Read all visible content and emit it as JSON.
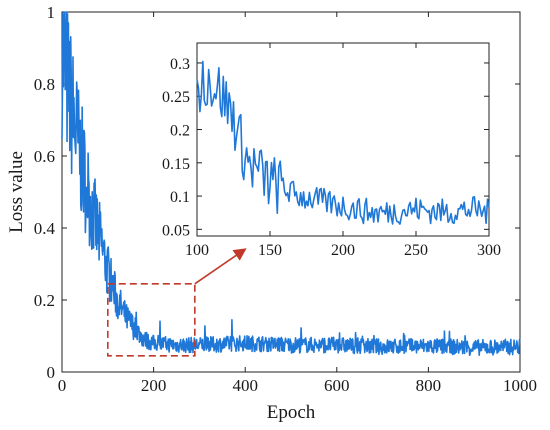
{
  "chart_data": [
    {
      "id": "main",
      "type": "line",
      "xlabel": "Epoch",
      "ylabel": "Loss value",
      "xlim": [
        0,
        1000
      ],
      "ylim": [
        0,
        1
      ],
      "xticks": [
        0,
        200,
        400,
        600,
        800,
        1000
      ],
      "yticks": [
        0,
        0.2,
        0.4,
        0.6,
        0.8,
        1
      ],
      "xtick_labels": [
        "0",
        "200",
        "400",
        "600",
        "800",
        "1000"
      ],
      "ytick_labels": [
        "0",
        "0.2",
        "0.4",
        "0.6",
        "0.8",
        "1"
      ],
      "grid": false,
      "line_color": "#1f78d8",
      "series": [
        {
          "x": [
            0,
            20,
            40,
            60,
            80,
            100,
            120,
            140,
            160,
            180,
            200,
            250,
            300,
            400,
            500,
            600,
            700,
            800,
            900,
            1000
          ],
          "values": [
            0.9,
            0.74,
            0.6,
            0.48,
            0.38,
            0.28,
            0.2,
            0.15,
            0.12,
            0.09,
            0.08,
            0.075,
            0.075,
            0.08,
            0.075,
            0.075,
            0.07,
            0.072,
            0.068,
            0.07
          ]
        }
      ],
      "zoom_box": {
        "x": [
          100,
          290
        ],
        "y": [
          0.045,
          0.245
        ],
        "color": "#c0392b"
      }
    },
    {
      "id": "inset",
      "type": "line",
      "xlim": [
        100,
        300
      ],
      "ylim": [
        0.04,
        0.33
      ],
      "xticks": [
        100,
        150,
        200,
        250,
        300
      ],
      "yticks": [
        0.05,
        0.1,
        0.15,
        0.2,
        0.25,
        0.3
      ],
      "xtick_labels": [
        "100",
        "150",
        "200",
        "250",
        "300"
      ],
      "ytick_labels": [
        "0.05",
        "0.1",
        "0.15",
        "0.2",
        "0.25",
        "0.3"
      ],
      "grid": false,
      "line_color": "#1f78d8",
      "series": [
        {
          "x": [
            100,
            105,
            110,
            115,
            120,
            125,
            130,
            135,
            140,
            145,
            150,
            160,
            170,
            180,
            190,
            200,
            210,
            220,
            230,
            240,
            250,
            260,
            270,
            280,
            290,
            300
          ],
          "values": [
            0.25,
            0.28,
            0.27,
            0.26,
            0.24,
            0.22,
            0.18,
            0.15,
            0.14,
            0.13,
            0.12,
            0.11,
            0.1,
            0.095,
            0.09,
            0.085,
            0.08,
            0.075,
            0.075,
            0.078,
            0.08,
            0.078,
            0.076,
            0.078,
            0.08,
            0.075
          ]
        }
      ]
    }
  ]
}
